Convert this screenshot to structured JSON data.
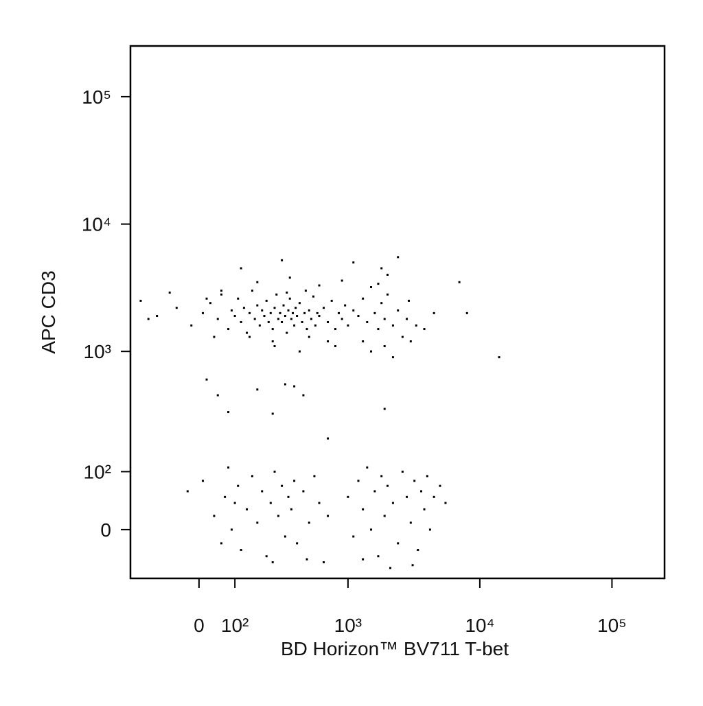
{
  "chart_data": {
    "type": "scatter",
    "x_label": "BD Horizon™ BV711 T-bet",
    "y_label": "APC CD3",
    "x_scale": "biexponential",
    "y_scale": "biexponential",
    "color": "#000000",
    "xlim": [
      -225,
      250000
    ],
    "ylim": [
      -80,
      250000
    ],
    "xticks": [
      0,
      {
        "value": 100,
        "label": "10²"
      },
      {
        "value": 1000,
        "label": "10³"
      },
      {
        "value": 10000,
        "label": "10⁴"
      },
      {
        "value": 100000,
        "label": "10⁵"
      }
    ],
    "yticks": [
      0,
      {
        "value": 100,
        "label": "10²"
      },
      {
        "value": 1000,
        "label": "10³"
      },
      {
        "value": 10000,
        "label": "10⁴"
      },
      {
        "value": 100000,
        "label": "10⁵"
      }
    ],
    "x": [
      -180,
      -120,
      -60,
      -20,
      10,
      30,
      50,
      60,
      80,
      90,
      100,
      110,
      120,
      130,
      140,
      150,
      160,
      170,
      180,
      190,
      200,
      210,
      220,
      230,
      240,
      250,
      260,
      270,
      280,
      290,
      300,
      310,
      320,
      330,
      340,
      350,
      360,
      370,
      380,
      390,
      400,
      420,
      440,
      460,
      480,
      500,
      520,
      540,
      560,
      580,
      600,
      650,
      700,
      750,
      800,
      850,
      900,
      950,
      1000,
      1100,
      1200,
      1300,
      1400,
      1500,
      1600,
      1700,
      1800,
      1900,
      2000,
      2200,
      2400,
      2600,
      2800,
      3000,
      3300,
      260,
      420,
      700,
      1500,
      2200,
      180,
      350,
      600,
      900,
      1800,
      2400,
      120,
      300,
      1100,
      2000,
      250,
      500,
      800,
      150,
      1300,
      1900,
      330,
      470,
      1700,
      2900,
      7000,
      8000,
      14000,
      4500,
      -150,
      40,
      -80,
      3800,
      60,
      20,
      20,
      50,
      80,
      180,
      250,
      320,
      380,
      450,
      1900,
      700,
      -30,
      10,
      40,
      60,
      70,
      80,
      90,
      100,
      110,
      120,
      140,
      160,
      180,
      200,
      220,
      240,
      260,
      280,
      300,
      320,
      340,
      360,
      380,
      400,
      450,
      500,
      550,
      600,
      650,
      700,
      1000,
      1100,
      1200,
      1300,
      1400,
      1500,
      1600,
      1700,
      1800,
      1900,
      2000,
      2200,
      2400,
      2600,
      2800,
      3000,
      3200,
      3400,
      3600,
      3800,
      4000,
      4200,
      4500,
      5000,
      5500,
      2100,
      3100,
      1300,
      250,
      480
    ],
    "values": [
      2500,
      1900,
      2200,
      1600,
      2000,
      2400,
      1800,
      2800,
      1500,
      2100,
      1900,
      2600,
      1700,
      2200,
      1400,
      2000,
      3000,
      1800,
      2300,
      1600,
      2100,
      1900,
      2500,
      1700,
      2000,
      1500,
      2200,
      2800,
      1800,
      2000,
      1700,
      2300,
      1900,
      1400,
      2100,
      2600,
      1800,
      2000,
      1600,
      2200,
      1900,
      2400,
      1700,
      2000,
      1500,
      2100,
      1800,
      2700,
      1600,
      2000,
      1900,
      2200,
      1700,
      2500,
      1500,
      2000,
      1800,
      2300,
      1600,
      2100,
      1900,
      2600,
      1700,
      3200,
      2000,
      1500,
      2400,
      1800,
      2800,
      1600,
      2100,
      1300,
      1800,
      1200,
      1600,
      1100,
      1000,
      1200,
      1000,
      900,
      3500,
      3800,
      3300,
      3600,
      4500,
      5500,
      4500,
      5200,
      5000,
      4000,
      1200,
      1300,
      1100,
      1300,
      1200,
      1100,
      2900,
      3000,
      3400,
      2500,
      3500,
      2000,
      900,
      2000,
      1800,
      1300,
      2900,
      1500,
      3000,
      2600,
      600,
      450,
      330,
      500,
      320,
      550,
      530,
      450,
      350,
      200,
      60,
      80,
      20,
      -20,
      50,
      110,
      0,
      40,
      70,
      -30,
      30,
      90,
      10,
      60,
      -40,
      40,
      100,
      20,
      70,
      -10,
      50,
      30,
      80,
      -20,
      60,
      10,
      90,
      40,
      -50,
      20,
      50,
      -10,
      80,
      30,
      110,
      0,
      60,
      -40,
      90,
      20,
      70,
      40,
      -20,
      100,
      50,
      10,
      80,
      -30,
      60,
      30,
      90,
      0,
      50,
      70,
      40,
      -60,
      -55,
      -45,
      -50,
      -45
    ]
  }
}
